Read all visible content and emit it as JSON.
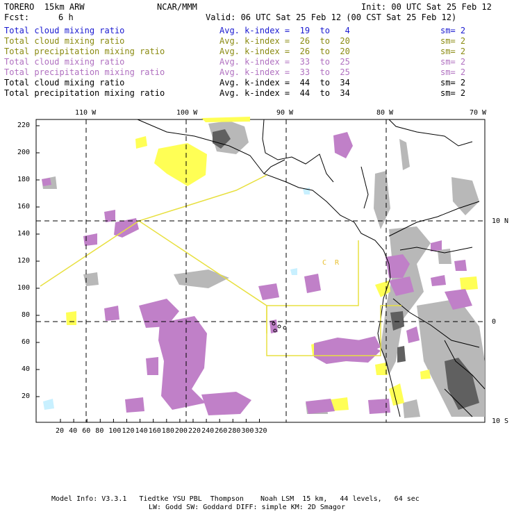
{
  "header": {
    "model": "TORERO  15km ARW",
    "org": "NCAR/MMM",
    "init": "Init: 00 UTC Sat 25 Feb 12",
    "fcst_label": "Fcst:",
    "fcst_value": "6 h",
    "valid": "Valid: 06 UTC Sat 25 Feb 12 (00 CST Sat 25 Feb 12)"
  },
  "legend": [
    {
      "field": "Total cloud mixing ratio",
      "kindex": "Avg. k-index =  19  to   4",
      "sm": "sm= 2",
      "color": "#1a1ad0"
    },
    {
      "field": "Total cloud mixing ratio",
      "kindex": "Avg. k-index =  26  to  20",
      "sm": "sm= 2",
      "color": "#8a8a10"
    },
    {
      "field": "Total precipitation mixing ratio",
      "kindex": "Avg. k-index =  26  to  20",
      "sm": "sm= 2",
      "color": "#8a8a10"
    },
    {
      "field": "Total cloud mixing ratio",
      "kindex": "Avg. k-index =  33  to  25",
      "sm": "sm= 2",
      "color": "#b070c0"
    },
    {
      "field": "Total precipitation mixing ratio",
      "kindex": "Avg. k-index =  33  to  25",
      "sm": "sm= 2",
      "color": "#b070c0"
    },
    {
      "field": "Total cloud mixing ratio",
      "kindex": "Avg. k-index =  44  to  34",
      "sm": "sm= 2",
      "color": "#000000"
    },
    {
      "field": "Total precipitation mixing ratio",
      "kindex": "Avg. k-index =  44  to  34",
      "sm": "sm= 2",
      "color": "#000000"
    }
  ],
  "lon_labels": [
    "110 W",
    "100 W",
    "90 W",
    "80 W",
    "70 W"
  ],
  "lat_labels": [
    "10 N",
    "0",
    "10 S"
  ],
  "x_ticks": [
    "20",
    "40",
    "60",
    "80",
    "100",
    "120",
    "140",
    "160",
    "180",
    "200",
    "220",
    "240",
    "260",
    "280",
    "300",
    "320"
  ],
  "y_ticks": [
    "220",
    "200",
    "180",
    "160",
    "140",
    "120",
    "100",
    "80",
    "60",
    "40",
    "20"
  ],
  "region_label": "C  R",
  "footer": {
    "line1": "Model Info: V3.3.1   Tiedtke YSU PBL  Thompson    Noah LSM  15 km,   44 levels,   64 sec",
    "line2": "LW: Godd SW: Goddard DIFF: simple KM: 2D Smagor"
  },
  "colors": {
    "yellow": "#ffff55",
    "purple": "#c080c8",
    "gray_light": "#b8b8b8",
    "gray_dark": "#606060",
    "cyan": "#c8f0ff",
    "region_box": "#e8e040"
  }
}
